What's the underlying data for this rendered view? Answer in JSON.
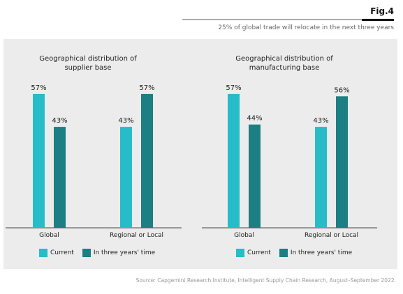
{
  "header": {
    "fig_label": "Fig.4",
    "subtitle": "25% of global trade will relocate in the next three years"
  },
  "source": "Source: Capgemini Research Institute, Intelligent Supply Chain Research, August–September 2022.",
  "colors": {
    "current": "#26bcc8",
    "three_years": "#1b7f83",
    "panel": "#ececec"
  },
  "chart_data": [
    {
      "type": "bar",
      "title_line1": "Geographical distribution of",
      "title_line2": "supplier base",
      "categories": [
        "Global",
        "Regional or Local"
      ],
      "series": [
        {
          "name": "Current",
          "values": [
            57,
            43
          ]
        },
        {
          "name": "In three years' time",
          "values": [
            43,
            57
          ]
        }
      ],
      "data_labels": [
        [
          "57%",
          "43%"
        ],
        [
          "43%",
          "57%"
        ]
      ],
      "ylim": [
        0,
        60
      ],
      "legend": [
        "Current",
        "In three years' time"
      ],
      "legend_position": "bottom"
    },
    {
      "type": "bar",
      "title_line1": "Geographical distribution of",
      "title_line2": "manufacturing base",
      "categories": [
        "Global",
        "Regional or Local"
      ],
      "series": [
        {
          "name": "Current",
          "values": [
            57,
            43
          ]
        },
        {
          "name": "In three years' time",
          "values": [
            44,
            56
          ]
        }
      ],
      "data_labels": [
        [
          "57%",
          "43%"
        ],
        [
          "44%",
          "56%"
        ]
      ],
      "ylim": [
        0,
        60
      ],
      "legend": [
        "Current",
        "In three years' time"
      ],
      "legend_position": "bottom"
    }
  ]
}
